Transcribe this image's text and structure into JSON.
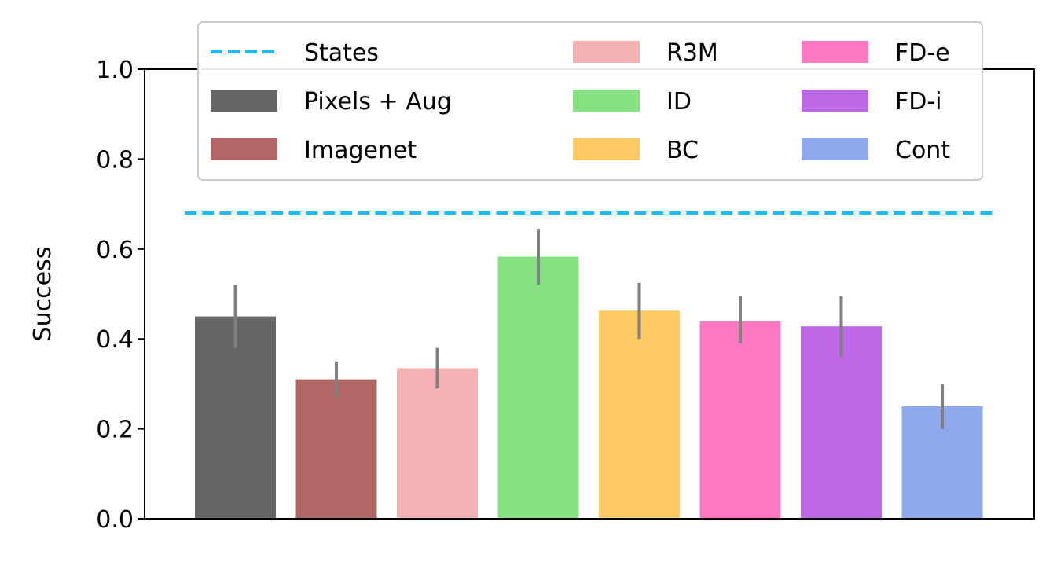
{
  "chart_data": {
    "type": "bar",
    "ylabel": "Success",
    "ylim": [
      0,
      1.0
    ],
    "yticks": [
      "0.0",
      "0.2",
      "0.4",
      "0.6",
      "0.8",
      "1.0"
    ],
    "bars": [
      {
        "name": "Pixels + Aug",
        "value": 0.45,
        "err_low": 0.38,
        "err_high": 0.52,
        "color": "#666666"
      },
      {
        "name": "Imagenet",
        "value": 0.31,
        "err_low": 0.27,
        "err_high": 0.35,
        "color": "#b06766"
      },
      {
        "name": "R3M",
        "value": 0.335,
        "err_low": 0.29,
        "err_high": 0.38,
        "color": "#f5b1b3"
      },
      {
        "name": "ID",
        "value": 0.583,
        "err_low": 0.52,
        "err_high": 0.645,
        "color": "#85e283"
      },
      {
        "name": "BC",
        "value": 0.463,
        "err_low": 0.4,
        "err_high": 0.525,
        "color": "#ffc966"
      },
      {
        "name": "FD-e",
        "value": 0.44,
        "err_low": 0.39,
        "err_high": 0.495,
        "color": "#ff77c1"
      },
      {
        "name": "FD-i",
        "value": 0.428,
        "err_low": 0.36,
        "err_high": 0.495,
        "color": "#bd68e5"
      },
      {
        "name": "Cont",
        "value": 0.25,
        "err_low": 0.2,
        "err_high": 0.3,
        "color": "#8fa7ed"
      }
    ],
    "reference_line": {
      "name": "States",
      "value": 0.68,
      "color": "#17bdf9",
      "style": "dashed"
    },
    "error_bar_color": "#808080",
    "legend": {
      "placement": "top",
      "columns": 3,
      "entries": [
        {
          "label": "States",
          "kind": "line"
        },
        {
          "label": "Pixels + Aug",
          "kind": "patch",
          "color": "#666666"
        },
        {
          "label": "Imagenet",
          "kind": "patch",
          "color": "#b06766"
        },
        {
          "label": "R3M",
          "kind": "patch",
          "color": "#f5b1b3"
        },
        {
          "label": "ID",
          "kind": "patch",
          "color": "#85e283"
        },
        {
          "label": "BC",
          "kind": "patch",
          "color": "#ffc966"
        },
        {
          "label": "FD-e",
          "kind": "patch",
          "color": "#ff77c1"
        },
        {
          "label": "FD-i",
          "kind": "patch",
          "color": "#bd68e5"
        },
        {
          "label": "Cont",
          "kind": "patch",
          "color": "#8fa7ed"
        }
      ]
    },
    "grid": false
  }
}
